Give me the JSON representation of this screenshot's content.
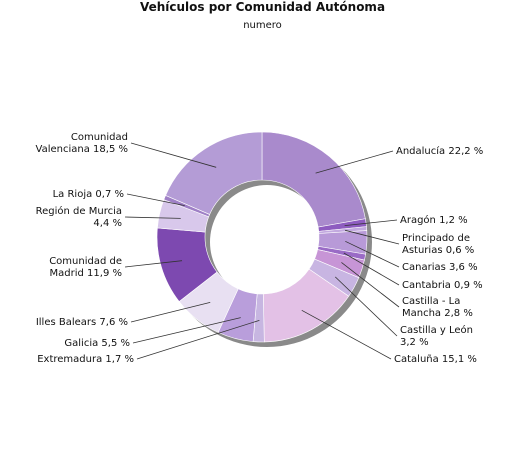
{
  "chart_data": {
    "type": "pie",
    "title": "Vehículos por Comunidad Autónoma",
    "subtitle": "numero",
    "unit": "%",
    "categories": [
      "Andalucía",
      "Aragón",
      "Principado de Asturias",
      "Canarias",
      "Cantabria",
      "Castilla - La Mancha",
      "Castilla y León",
      "Cataluña",
      "Extremadura",
      "Galicia",
      "Illes Balears",
      "Comunidad de Madrid",
      "Región de Murcia",
      "La Rioja",
      "Comunidad Valenciana"
    ],
    "values": [
      22.2,
      1.2,
      0.6,
      3.6,
      0.9,
      2.8,
      3.2,
      15.1,
      1.7,
      5.5,
      7.6,
      11.9,
      4.4,
      0.7,
      18.5
    ],
    "labels": [
      [
        "Andalucía 22,2 %"
      ],
      [
        "Aragón 1,2 %"
      ],
      [
        "Principado de",
        "Asturias 0,6 %"
      ],
      [
        "Canarias 3,6 %"
      ],
      [
        "Cantabria 0,9 %"
      ],
      [
        "Castilla - La",
        "Mancha 2,8 %"
      ],
      [
        "Castilla y León",
        "3,2 %"
      ],
      [
        "Cataluña 15,1 %"
      ],
      [
        "Extremadura 1,7 %"
      ],
      [
        "Galicia 5,5 %"
      ],
      [
        "Illes Balears 7,6 %"
      ],
      [
        "Comunidad de",
        "Madrid 11,9 %"
      ],
      [
        "Región de Murcia",
        "4,4 %"
      ],
      [
        "La Rioja 0,7 %"
      ],
      [
        "Comunidad",
        "Valenciana 18,5 %"
      ]
    ],
    "colors": [
      "#a98acc",
      "#8e5cc0",
      "#c2a9df",
      "#b89ad8",
      "#9a6bc6",
      "#c795d6",
      "#c8b5e2",
      "#e3c1e6",
      "#c7b6e1",
      "#b99edb",
      "#e8e0f2",
      "#7d49b0",
      "#d8c8eb",
      "#9f80c6",
      "#b49cd6"
    ],
    "donut": true,
    "legend": "none"
  }
}
